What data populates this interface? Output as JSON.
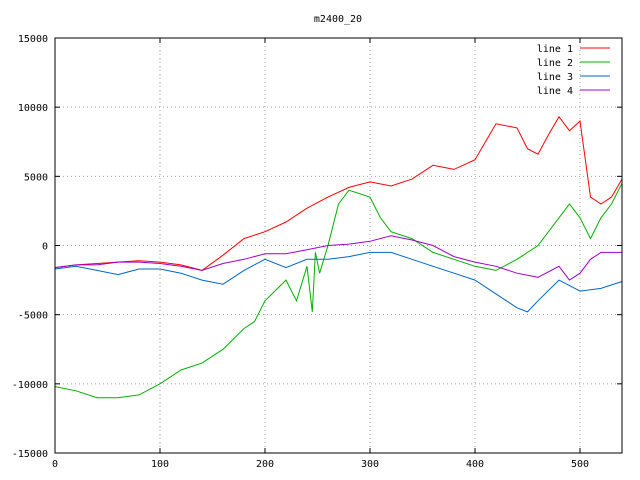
{
  "chart_data": {
    "type": "line",
    "title": "m2400_20",
    "xlabel": "",
    "ylabel": "",
    "xlim": [
      0,
      540
    ],
    "ylim": [
      -15000,
      15000
    ],
    "xticks": [
      0,
      100,
      200,
      300,
      400,
      500
    ],
    "yticks": [
      -15000,
      -10000,
      -5000,
      0,
      5000,
      10000,
      15000
    ],
    "grid": true,
    "legend_position": "top-right",
    "series": [
      {
        "name": "line 1",
        "color": "#ff0000",
        "x": [
          0,
          20,
          40,
          60,
          80,
          100,
          120,
          140,
          160,
          180,
          200,
          220,
          240,
          260,
          280,
          300,
          320,
          340,
          360,
          380,
          400,
          410,
          420,
          440,
          450,
          460,
          470,
          480,
          490,
          500,
          510,
          520,
          530,
          540
        ],
        "y": [
          -1600,
          -1400,
          -1300,
          -1200,
          -1100,
          -1200,
          -1400,
          -1800,
          -700,
          500,
          1000,
          1700,
          2700,
          3500,
          4200,
          4600,
          4300,
          4800,
          5800,
          5500,
          6200,
          7500,
          8800,
          8500,
          7000,
          6600,
          8000,
          9300,
          8300,
          9000,
          3500,
          3000,
          3500,
          4800
        ]
      },
      {
        "name": "line 2",
        "color": "#00b000",
        "x": [
          0,
          20,
          40,
          60,
          80,
          100,
          120,
          140,
          160,
          180,
          190,
          200,
          220,
          230,
          240,
          245,
          248,
          252,
          260,
          270,
          280,
          300,
          310,
          320,
          340,
          360,
          380,
          400,
          420,
          440,
          460,
          480,
          490,
          500,
          510,
          520,
          530,
          540
        ],
        "y": [
          -10200,
          -10500,
          -11000,
          -11000,
          -10800,
          -10000,
          -9000,
          -8500,
          -7500,
          -6000,
          -5500,
          -4000,
          -2500,
          -4000,
          -1500,
          -4800,
          -500,
          -2000,
          0,
          3000,
          4000,
          3500,
          2000,
          1000,
          500,
          -500,
          -1000,
          -1500,
          -1800,
          -1000,
          0,
          2000,
          3000,
          2000,
          500,
          2000,
          3000,
          4500
        ]
      },
      {
        "name": "line 3",
        "color": "#0066cc",
        "x": [
          0,
          20,
          40,
          60,
          80,
          100,
          120,
          140,
          160,
          180,
          200,
          220,
          240,
          260,
          280,
          300,
          320,
          340,
          360,
          380,
          400,
          420,
          440,
          450,
          460,
          480,
          500,
          520,
          540
        ],
        "y": [
          -1700,
          -1500,
          -1800,
          -2100,
          -1700,
          -1700,
          -2000,
          -2500,
          -2800,
          -1800,
          -1000,
          -1600,
          -1000,
          -1000,
          -800,
          -500,
          -500,
          -1000,
          -1500,
          -2000,
          -2500,
          -3500,
          -4500,
          -4800,
          -4000,
          -2500,
          -3300,
          -3100,
          -2600
        ]
      },
      {
        "name": "line 4",
        "color": "#a000d0",
        "x": [
          0,
          20,
          40,
          60,
          80,
          100,
          120,
          140,
          160,
          180,
          200,
          220,
          240,
          260,
          280,
          300,
          320,
          340,
          360,
          380,
          400,
          420,
          440,
          460,
          480,
          490,
          500,
          510,
          520,
          540
        ],
        "y": [
          -1600,
          -1400,
          -1400,
          -1200,
          -1200,
          -1300,
          -1500,
          -1800,
          -1300,
          -1000,
          -600,
          -600,
          -300,
          0,
          100,
          300,
          700,
          400,
          0,
          -800,
          -1200,
          -1500,
          -2000,
          -2300,
          -1500,
          -2500,
          -2000,
          -1000,
          -500,
          -500
        ]
      }
    ]
  }
}
